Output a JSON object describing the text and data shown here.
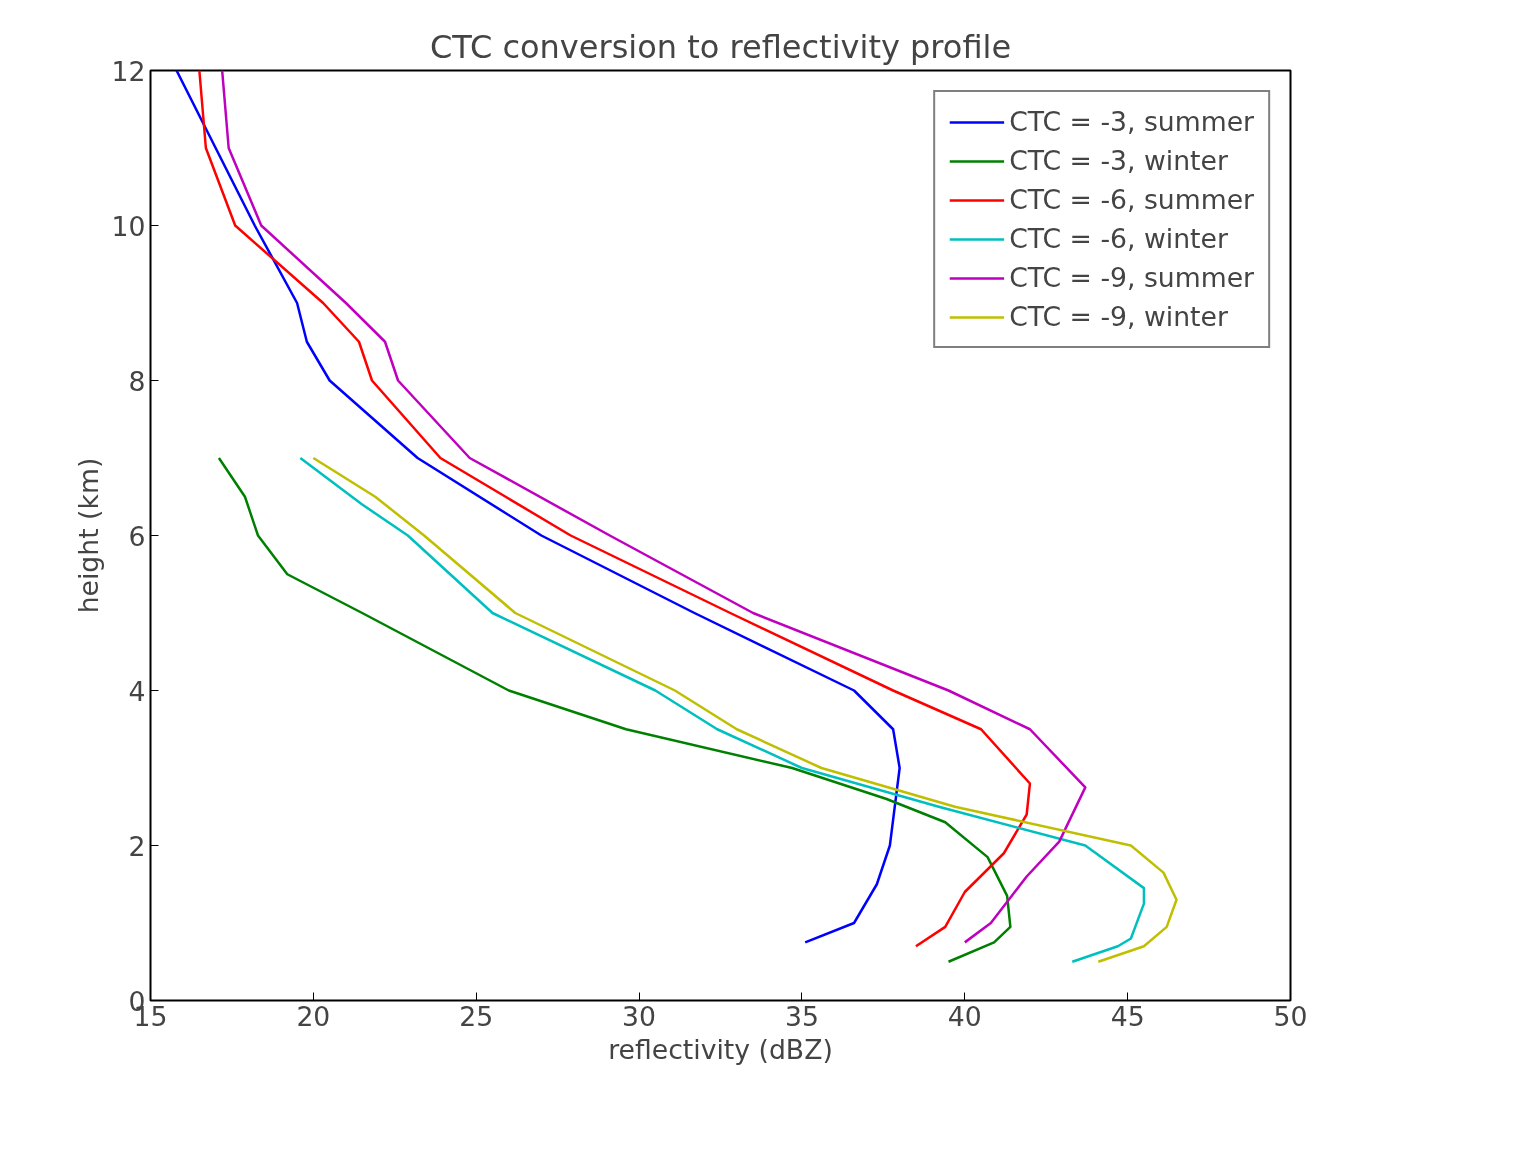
{
  "chart_data": {
    "type": "line",
    "title": "CTC conversion to reflectivity profile",
    "xlabel": "reflectivity (dBZ)",
    "ylabel": "height (km)",
    "xlim": [
      15,
      50
    ],
    "ylim": [
      0,
      12
    ],
    "xticks": [
      15,
      20,
      25,
      30,
      35,
      40,
      45,
      50
    ],
    "yticks": [
      0,
      2,
      4,
      6,
      8,
      10,
      12
    ],
    "grid": false,
    "legend": "top right",
    "line_style": "solid",
    "marker": "none",
    "series": [
      {
        "name": "CTC = -3, summer",
        "color": "#0000ff",
        "x": [
          15.8,
          17.0,
          18.2,
          19.5,
          19.8,
          20.5,
          23.2,
          27.0,
          31.7,
          36.6,
          37.8,
          38.0,
          37.7,
          37.3,
          36.6,
          35.1
        ],
        "values": [
          12,
          11,
          10,
          9,
          8.5,
          8,
          7,
          6,
          5,
          4,
          3.5,
          3,
          2,
          1.5,
          1,
          0.75
        ]
      },
      {
        "name": "CTC = -3, winter",
        "color": "#008000",
        "x": [
          17.1,
          17.9,
          18.3,
          19.2,
          21.5,
          26.0,
          29.6,
          34.7,
          37.6,
          39.4,
          40.7,
          41.3,
          41.4,
          40.9,
          39.5
        ],
        "values": [
          7,
          6.5,
          6,
          5.5,
          5,
          4,
          3.5,
          3,
          2.6,
          2.3,
          1.85,
          1.35,
          0.95,
          0.75,
          0.5
        ]
      },
      {
        "name": "CTC = -6, summer",
        "color": "#ff0000",
        "x": [
          16.5,
          16.7,
          17.6,
          20.3,
          21.4,
          21.8,
          23.9,
          27.9,
          32.8,
          37.8,
          40.5,
          42.0,
          41.9,
          41.2,
          40.0,
          39.4,
          38.5
        ],
        "values": [
          12,
          11,
          10,
          9,
          8.5,
          8,
          7,
          6,
          5,
          4,
          3.5,
          2.8,
          2.4,
          1.9,
          1.4,
          0.95,
          0.7
        ]
      },
      {
        "name": "CTC = -6, winter",
        "color": "#00bfbf",
        "x": [
          19.6,
          21.5,
          22.9,
          25.5,
          30.5,
          32.4,
          35.0,
          39.2,
          43.7,
          45.5,
          45.5,
          45.1,
          44.7,
          43.3
        ],
        "values": [
          7,
          6.4,
          6,
          5,
          4,
          3.5,
          3,
          2.5,
          2,
          1.45,
          1.25,
          0.8,
          0.7,
          0.5
        ]
      },
      {
        "name": "CTC = -9, summer",
        "color": "#bf00bf",
        "x": [
          17.2,
          17.4,
          18.4,
          21.0,
          22.2,
          22.6,
          24.8,
          29.1,
          33.5,
          39.5,
          42.0,
          43.7,
          42.9,
          41.9,
          40.8,
          40.0
        ],
        "values": [
          12,
          11,
          10,
          9,
          8.5,
          8,
          7,
          6,
          5,
          4,
          3.5,
          2.75,
          2.05,
          1.6,
          1.0,
          0.75
        ]
      },
      {
        "name": "CTC = -9, winter",
        "color": "#bfbf00",
        "x": [
          20.0,
          21.9,
          23.4,
          26.2,
          31.1,
          33.0,
          35.6,
          39.7,
          45.1,
          46.1,
          46.5,
          46.2,
          45.5,
          44.1
        ],
        "values": [
          7,
          6.5,
          6,
          5,
          4,
          3.5,
          3,
          2.5,
          2,
          1.65,
          1.3,
          0.95,
          0.7,
          0.5
        ]
      }
    ]
  }
}
